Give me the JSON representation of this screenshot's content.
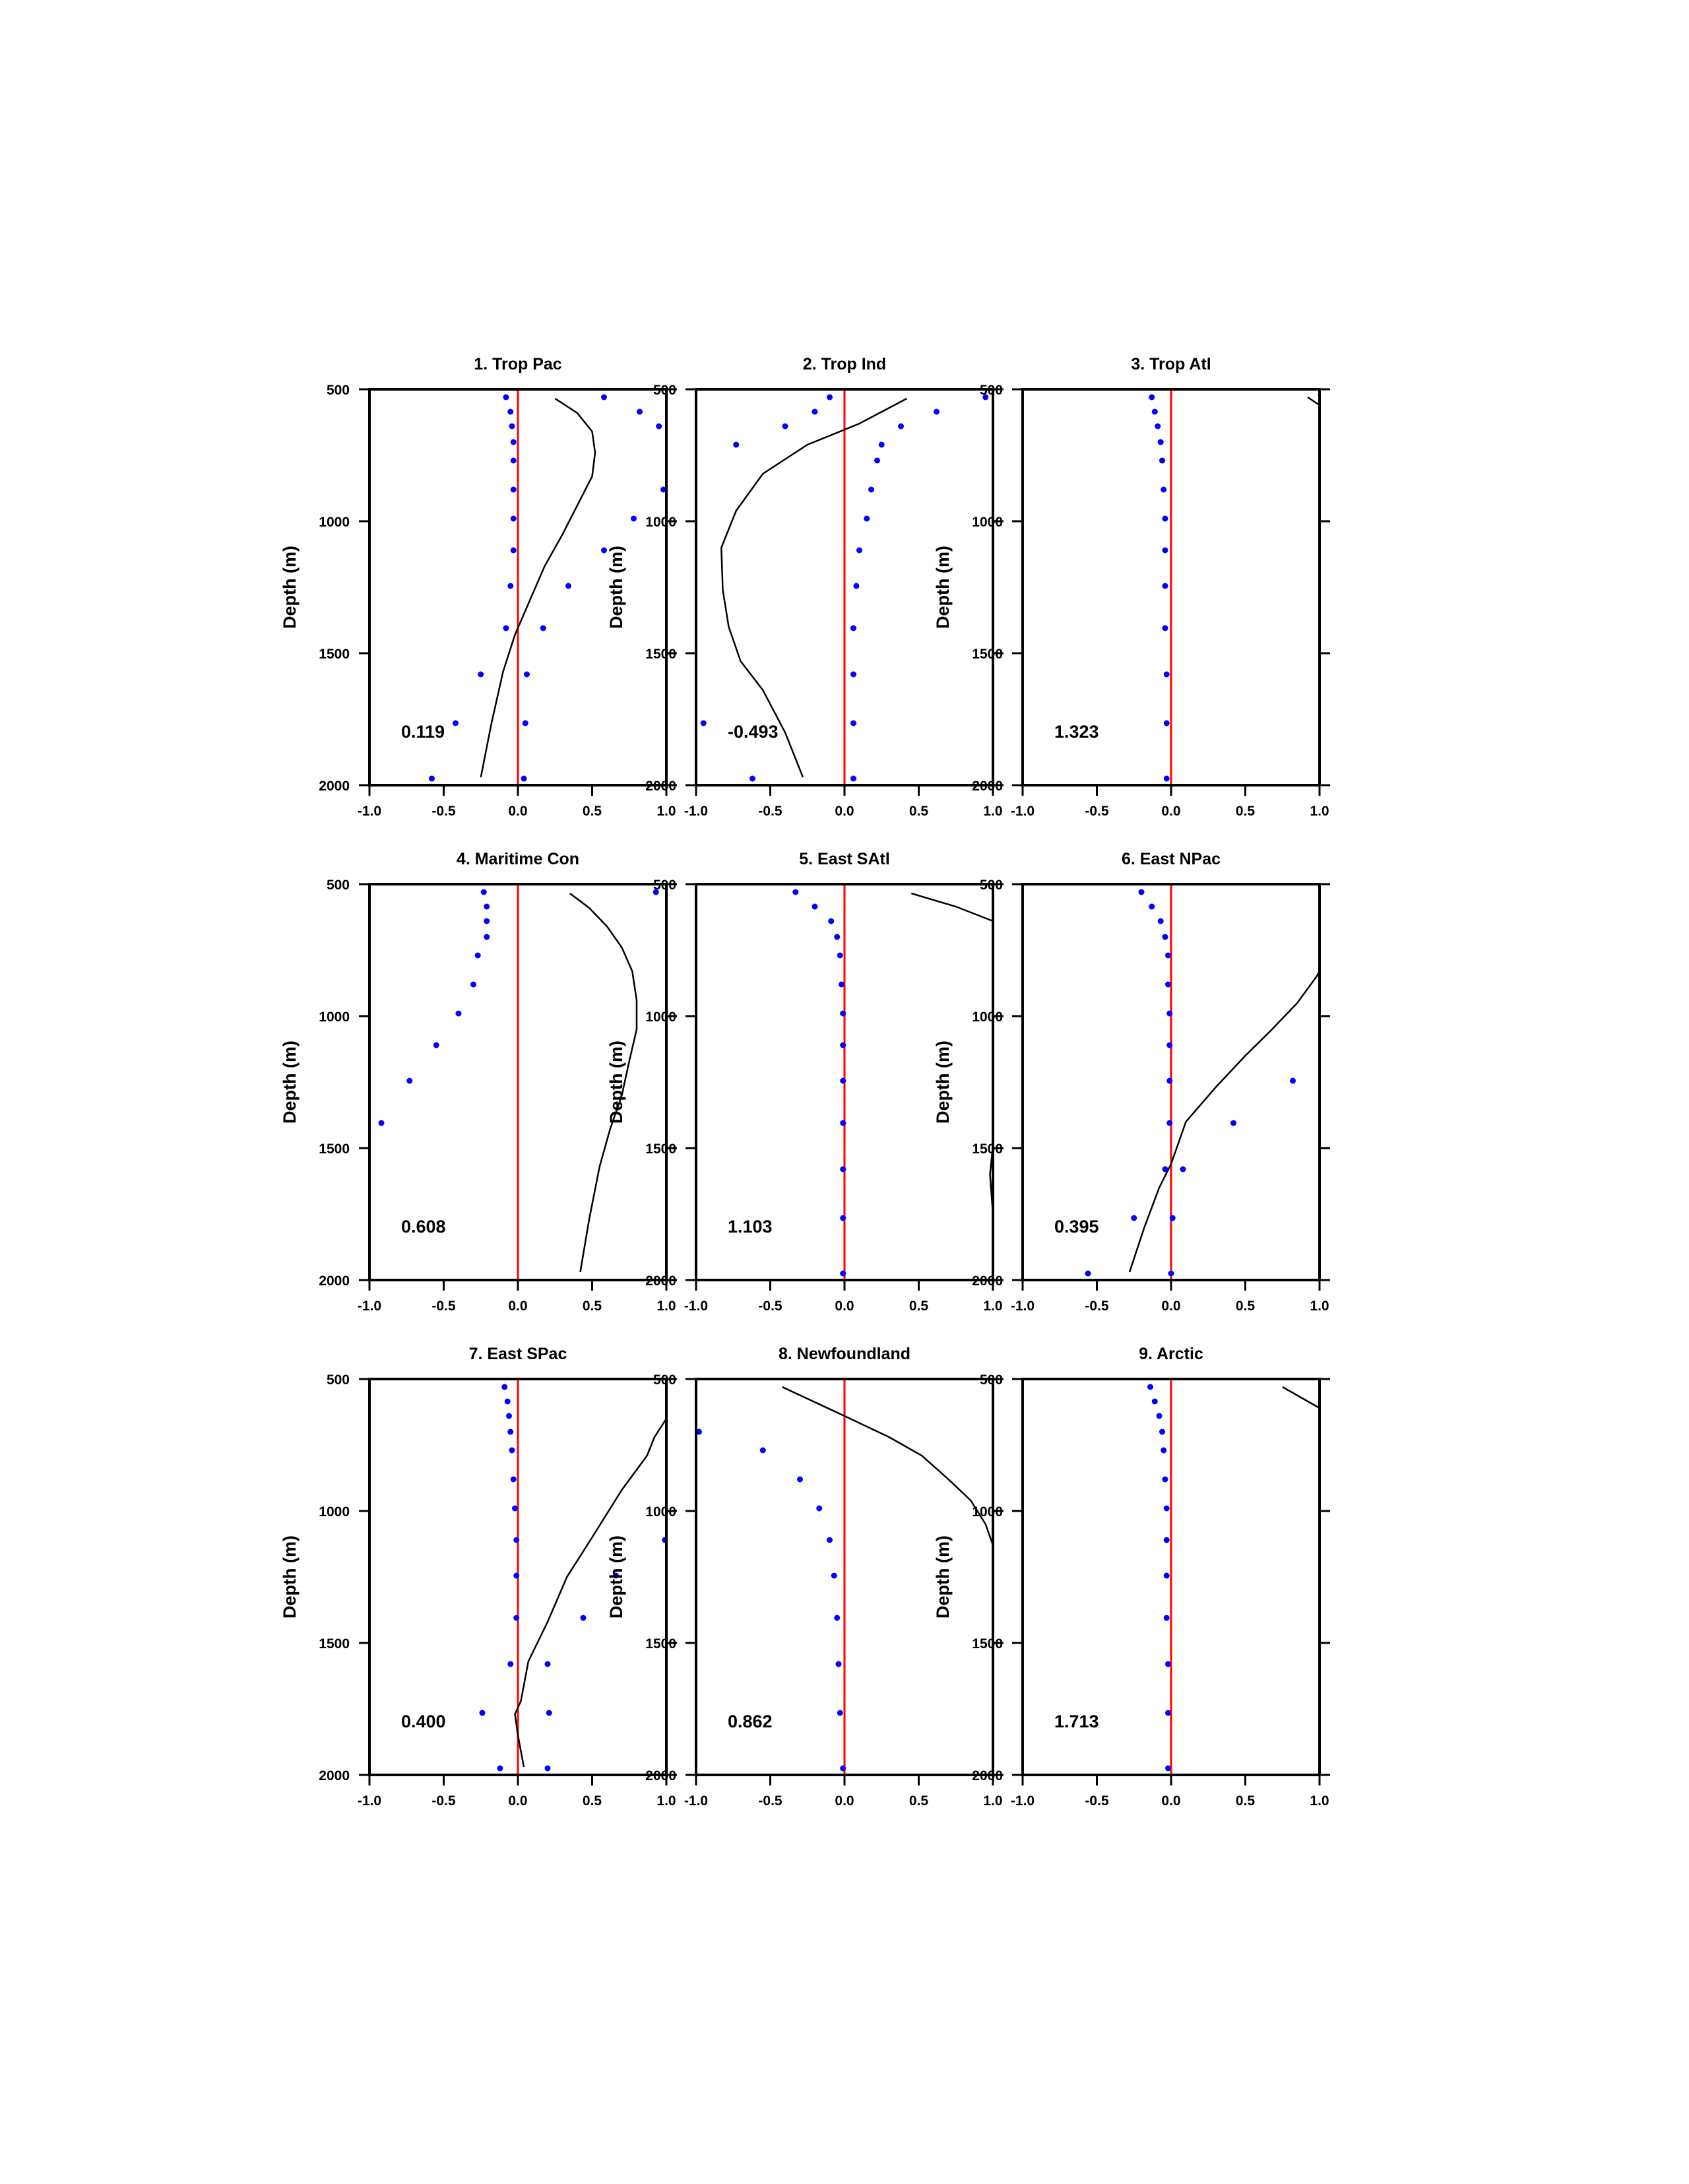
{
  "figure": {
    "ylabel": "Depth (m)",
    "xlim": [
      -1.0,
      1.0
    ],
    "ylim_depth": [
      2000,
      500
    ],
    "x_tick_labels": [
      "-1.0",
      "-0.5",
      "0.0",
      "0.5",
      "1.0"
    ],
    "y_tick_labels": [
      "500",
      "1000",
      "1500",
      "2000"
    ],
    "colors": {
      "curve": "#000000",
      "points": "#0000ff",
      "zero_line": "#ff0000",
      "frame": "#000000"
    }
  },
  "chart_data": [
    {
      "type": "line",
      "title": "1. Trop Pac",
      "annotation": "0.119",
      "xlim": [
        -1.0,
        1.0
      ],
      "ylim": [
        2000,
        500
      ],
      "ylabel": "Depth (m)",
      "series": [
        {
          "x": [
            0.25,
            0.4,
            0.5,
            0.52,
            0.5,
            0.4,
            0.3,
            0.18,
            0.08,
            -0.02,
            -0.1,
            -0.18,
            -0.25
          ],
          "y": [
            535,
            590,
            660,
            740,
            830,
            940,
            1050,
            1170,
            1300,
            1430,
            1570,
            1770,
            1970
          ]
        },
        {
          "x": [
            -0.08,
            -0.05,
            -0.04,
            -0.03,
            -0.03,
            -0.03,
            -0.03,
            -0.03,
            -0.05,
            -0.08,
            -0.25,
            -0.42,
            -0.58,
            0.58,
            0.82,
            0.95,
            0.98,
            0.78,
            0.58,
            0.34,
            0.17,
            0.06,
            0.05,
            0.04
          ],
          "y": [
            530,
            585,
            640,
            700,
            770,
            880,
            990,
            1110,
            1245,
            1405,
            1580,
            1765,
            1975,
            530,
            585,
            640,
            880,
            990,
            1110,
            1245,
            1405,
            1580,
            1765,
            1975
          ]
        }
      ]
    },
    {
      "type": "line",
      "title": "2. Trop Ind",
      "annotation": "-0.493",
      "xlim": [
        -1.0,
        1.0
      ],
      "ylim": [
        2000,
        500
      ],
      "ylabel": "Depth (m)",
      "series": [
        {
          "x": [
            0.42,
            0.1,
            -0.25,
            -0.55,
            -0.73,
            -0.83,
            -0.82,
            -0.78,
            -0.7,
            -0.55,
            -0.4,
            -0.28
          ],
          "y": [
            535,
            630,
            710,
            820,
            960,
            1100,
            1260,
            1400,
            1530,
            1640,
            1800,
            1970
          ]
        },
        {
          "x": [
            0.95,
            -0.1,
            -0.2,
            -0.4,
            -0.73,
            0.62,
            0.38,
            0.25,
            0.22,
            0.18,
            0.15,
            0.1,
            0.08,
            0.06,
            0.06,
            0.06,
            0.06,
            -0.95,
            -0.62
          ],
          "y": [
            530,
            530,
            585,
            640,
            710,
            585,
            640,
            710,
            770,
            880,
            990,
            1110,
            1245,
            1405,
            1580,
            1765,
            1975,
            1765,
            1975
          ]
        }
      ]
    },
    {
      "type": "line",
      "title": "3. Trop Atl",
      "annotation": "1.323",
      "xlim": [
        -1.0,
        1.0
      ],
      "ylim": [
        2000,
        500
      ],
      "ylabel": "Depth (m)",
      "series": [
        {
          "x": [
            0.92,
            1.0
          ],
          "y": [
            530,
            560
          ]
        },
        {
          "x": [
            -0.13,
            -0.11,
            -0.09,
            -0.07,
            -0.06,
            -0.05,
            -0.04,
            -0.04,
            -0.04,
            -0.04,
            -0.03,
            -0.03,
            -0.03
          ],
          "y": [
            530,
            585,
            640,
            700,
            770,
            880,
            990,
            1110,
            1245,
            1405,
            1580,
            1765,
            1975
          ]
        }
      ]
    },
    {
      "type": "line",
      "title": "4. Maritime Con",
      "annotation": "0.608",
      "xlim": [
        -1.0,
        1.0
      ],
      "ylim": [
        2000,
        500
      ],
      "ylabel": "Depth (m)",
      "series": [
        {
          "x": [
            0.35,
            0.48,
            0.6,
            0.7,
            0.77,
            0.8,
            0.8,
            0.75,
            0.7,
            0.62,
            0.55,
            0.48,
            0.42
          ],
          "y": [
            535,
            590,
            660,
            740,
            830,
            940,
            1050,
            1170,
            1300,
            1430,
            1570,
            1770,
            1970
          ]
        },
        {
          "x": [
            0.93,
            -0.23,
            -0.21,
            -0.21,
            -0.21,
            -0.27,
            -0.3,
            -0.4,
            -0.55,
            -0.73,
            -0.92
          ],
          "y": [
            530,
            530,
            585,
            640,
            700,
            770,
            880,
            990,
            1110,
            1245,
            1405
          ]
        }
      ]
    },
    {
      "type": "line",
      "title": "5. East SAtl",
      "annotation": "1.103",
      "xlim": [
        -1.0,
        1.0
      ],
      "ylim": [
        2000,
        500
      ],
      "ylabel": "Depth (m)",
      "series": [
        {
          "x": [
            0.45,
            0.75,
            1.0
          ],
          "y": [
            535,
            585,
            640
          ]
        },
        {
          "x": [
            1.0,
            0.98,
            1.0
          ],
          "y": [
            1490,
            1600,
            1750
          ]
        },
        {
          "x": [
            -0.33,
            -0.2,
            -0.09,
            -0.05,
            -0.03,
            -0.02,
            -0.01,
            -0.01,
            -0.01,
            -0.01,
            -0.01,
            -0.01,
            -0.01
          ],
          "y": [
            530,
            585,
            640,
            700,
            770,
            880,
            990,
            1110,
            1245,
            1405,
            1580,
            1765,
            1975
          ]
        }
      ]
    },
    {
      "type": "line",
      "title": "6. East NPac",
      "annotation": "0.395",
      "xlim": [
        -1.0,
        1.0
      ],
      "ylim": [
        2000,
        500
      ],
      "ylabel": "Depth (m)",
      "series": [
        {
          "x": [
            1.0,
            0.98,
            0.85,
            0.68,
            0.5,
            0.3,
            0.1,
            0.0,
            -0.08,
            -0.18,
            -0.28
          ],
          "y": [
            830,
            850,
            950,
            1050,
            1150,
            1270,
            1400,
            1560,
            1650,
            1800,
            1970
          ]
        },
        {
          "x": [
            -0.2,
            -0.13,
            -0.07,
            -0.04,
            -0.02,
            -0.02,
            -0.01,
            -0.01,
            -0.01,
            0.82,
            0.42,
            -0.01,
            -0.04,
            0.08,
            -0.25,
            0.01,
            -0.56,
            0.0
          ],
          "y": [
            530,
            585,
            640,
            700,
            770,
            880,
            990,
            1110,
            1245,
            1245,
            1405,
            1405,
            1580,
            1580,
            1765,
            1765,
            1975,
            1975
          ]
        }
      ]
    },
    {
      "type": "line",
      "title": "7. East SPac",
      "annotation": "0.400",
      "xlim": [
        -1.0,
        1.0
      ],
      "ylim": [
        2000,
        500
      ],
      "ylabel": "Depth (m)",
      "series": [
        {
          "x": [
            1.0,
            0.92,
            0.87,
            0.7,
            0.5,
            0.33,
            0.2,
            0.07,
            0.02,
            -0.02,
            0.0,
            0.04
          ],
          "y": [
            650,
            720,
            790,
            920,
            1100,
            1250,
            1420,
            1570,
            1720,
            1770,
            1850,
            1970
          ]
        },
        {
          "x": [
            -0.09,
            -0.07,
            -0.06,
            -0.05,
            -0.04,
            -0.03,
            -0.02,
            -0.01,
            -0.01,
            -0.01,
            -0.05,
            -0.24,
            -0.12,
            0.99,
            0.66,
            0.44,
            0.2,
            0.21,
            0.2
          ],
          "y": [
            530,
            585,
            640,
            700,
            770,
            880,
            990,
            1110,
            1245,
            1405,
            1580,
            1765,
            1975,
            1110,
            1245,
            1405,
            1580,
            1765,
            1975
          ]
        }
      ]
    },
    {
      "type": "line",
      "title": "8. Newfoundland",
      "annotation": "0.862",
      "xlim": [
        -1.0,
        1.0
      ],
      "ylim": [
        2000,
        500
      ],
      "ylabel": "Depth (m)",
      "series": [
        {
          "x": [
            -0.42,
            0.0,
            0.3,
            0.52,
            0.7,
            0.85,
            0.95,
            1.0
          ],
          "y": [
            530,
            640,
            720,
            790,
            880,
            960,
            1050,
            1130
          ]
        },
        {
          "x": [
            -0.98,
            -0.55,
            -0.3,
            -0.17,
            -0.1,
            -0.07,
            -0.05,
            -0.04,
            -0.03,
            -0.01
          ],
          "y": [
            700,
            770,
            880,
            990,
            1110,
            1245,
            1405,
            1580,
            1765,
            1975
          ]
        }
      ]
    },
    {
      "type": "line",
      "title": "9. Arctic",
      "annotation": "1.713",
      "xlim": [
        -1.0,
        1.0
      ],
      "ylim": [
        2000,
        500
      ],
      "ylabel": "Depth (m)",
      "series": [
        {
          "x": [
            0.75,
            1.0
          ],
          "y": [
            530,
            610
          ]
        },
        {
          "x": [
            -0.14,
            -0.11,
            -0.08,
            -0.06,
            -0.05,
            -0.04,
            -0.03,
            -0.03,
            -0.03,
            -0.03,
            -0.02,
            -0.02,
            -0.02
          ],
          "y": [
            530,
            585,
            640,
            700,
            770,
            880,
            990,
            1110,
            1245,
            1405,
            1580,
            1765,
            1975
          ]
        }
      ]
    }
  ]
}
